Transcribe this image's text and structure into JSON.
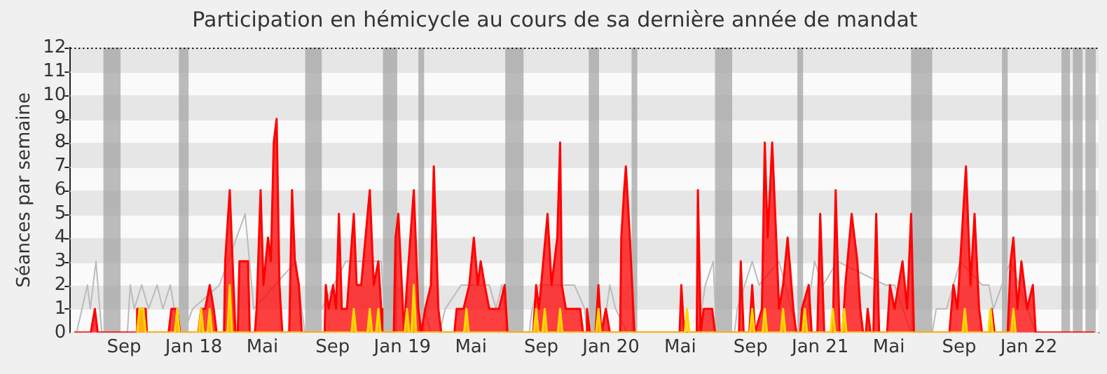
{
  "chart_data": {
    "type": "area",
    "title": "Participation en hémicycle au cours de sa dernière année de mandat",
    "ylabel": "Séances par semaine",
    "legend": false,
    "grid": "y",
    "marker": "none",
    "line_style": "solid",
    "xlim": [
      "2017-06-13",
      "2022-05-17"
    ],
    "ylim": [
      0,
      12
    ],
    "xticks": [
      {
        "value": "2017-09-15",
        "label": "Sep"
      },
      {
        "value": "2018-01-15",
        "label": "Jan 18"
      },
      {
        "value": "2018-05-15",
        "label": "Mai"
      },
      {
        "value": "2018-09-15",
        "label": "Sep"
      },
      {
        "value": "2019-01-15",
        "label": "Jan 19"
      },
      {
        "value": "2019-05-15",
        "label": "Mai"
      },
      {
        "value": "2019-09-15",
        "label": "Sep"
      },
      {
        "value": "2020-01-15",
        "label": "Jan 20"
      },
      {
        "value": "2020-05-15",
        "label": "Mai"
      },
      {
        "value": "2020-09-15",
        "label": "Sep"
      },
      {
        "value": "2021-01-15",
        "label": "Jan 21"
      },
      {
        "value": "2021-05-15",
        "label": "Mai"
      },
      {
        "value": "2021-09-15",
        "label": "Sep"
      },
      {
        "value": "2022-01-15",
        "label": "Jan 22"
      }
    ],
    "yticks": [
      0,
      1,
      2,
      3,
      4,
      5,
      6,
      7,
      8,
      9,
      10,
      11,
      12
    ],
    "bands": [
      {
        "axis": "x",
        "from": "2017-08-10",
        "to": "2017-09-09",
        "color": "#a0a0a0"
      },
      {
        "axis": "x",
        "from": "2017-12-20",
        "to": "2018-01-06",
        "color": "#a0a0a0"
      },
      {
        "axis": "x",
        "from": "2018-07-29",
        "to": "2018-08-27",
        "color": "#a0a0a0"
      },
      {
        "axis": "x",
        "from": "2018-12-12",
        "to": "2019-01-06",
        "color": "#a0a0a0"
      },
      {
        "axis": "x",
        "from": "2019-02-12",
        "to": "2019-02-22",
        "color": "#a0a0a0"
      },
      {
        "axis": "x",
        "from": "2019-07-14",
        "to": "2019-08-15",
        "color": "#a0a0a0"
      },
      {
        "axis": "x",
        "from": "2019-12-07",
        "to": "2019-12-25",
        "color": "#a0a0a0"
      },
      {
        "axis": "x",
        "from": "2020-02-20",
        "to": "2020-03-01",
        "color": "#a0a0a0"
      },
      {
        "axis": "x",
        "from": "2020-07-15",
        "to": "2020-08-14",
        "color": "#a0a0a0"
      },
      {
        "axis": "x",
        "from": "2020-12-06",
        "to": "2020-12-16",
        "color": "#a0a0a0"
      },
      {
        "axis": "x",
        "from": "2021-06-23",
        "to": "2021-07-30",
        "color": "#a0a0a0"
      },
      {
        "axis": "x",
        "from": "2021-11-29",
        "to": "2021-12-09",
        "color": "#a0a0a0"
      },
      {
        "axis": "x",
        "from": "2022-03-13",
        "to": "2022-03-28",
        "color": "#a0a0a0"
      },
      {
        "axis": "x",
        "from": "2022-04-02",
        "to": "2022-04-19",
        "color": "#a0a0a0"
      },
      {
        "axis": "x",
        "from": "2022-04-24",
        "to": "2022-05-12",
        "color": "#a0a0a0"
      }
    ],
    "series": [
      {
        "type": "line",
        "color": "#bbbbbb",
        "x": [
          "2017-06-24",
          "2017-07-13",
          "2017-07-18",
          "2017-07-28",
          "2017-08-07",
          "2017-09-21",
          "2017-09-26",
          "2017-10-03",
          "2017-10-16",
          "2017-10-28",
          "2017-11-12",
          "2017-11-22",
          "2017-12-05",
          "2017-12-12",
          "2017-12-29",
          "2018-01-13",
          "2018-02-10",
          "2018-03-01",
          "2018-03-24",
          "2018-04-15",
          "2018-04-30",
          "2018-06-06",
          "2018-07-13",
          "2018-07-28",
          "2018-08-27",
          "2018-10-08",
          "2018-10-18",
          "2018-12-09",
          "2018-12-17",
          "2019-02-17",
          "2019-02-22",
          "2019-03-06",
          "2019-03-21",
          "2019-03-31",
          "2019-04-28",
          "2019-05-07",
          "2019-05-27",
          "2019-06-08",
          "2019-06-16",
          "2019-06-28",
          "2019-07-08",
          "2019-07-18",
          "2019-08-25",
          "2019-08-30",
          "2019-09-11",
          "2019-11-12",
          "2019-11-30",
          "2019-12-04",
          "2020-01-01",
          "2020-01-13",
          "2020-01-23",
          "2020-02-12",
          "2020-06-15",
          "2020-06-28",
          "2020-07-12",
          "2020-07-17",
          "2020-08-18",
          "2020-08-23",
          "2020-09-18",
          "2020-09-30",
          "2020-11-04",
          "2020-11-16",
          "2020-12-06",
          "2020-12-19",
          "2021-01-05",
          "2021-01-20",
          "2021-02-14",
          "2021-03-16",
          "2021-05-09",
          "2021-05-25",
          "2021-06-23",
          "2021-07-30",
          "2021-08-06",
          "2021-08-24",
          "2021-09-17",
          "2021-10-05",
          "2021-10-25",
          "2021-11-06",
          "2021-11-14",
          "2021-12-14",
          "2022-01-12",
          "2022-01-27"
        ],
        "values": [
          0,
          2,
          1,
          3,
          0,
          0,
          2,
          1,
          2,
          1,
          2,
          1,
          2,
          1,
          0,
          1,
          null,
          2,
          null,
          5,
          1,
          null,
          3,
          0,
          1,
          3,
          3,
          3,
          0,
          0,
          1,
          0,
          0,
          1,
          2,
          2,
          null,
          null,
          2,
          1,
          2,
          0,
          0,
          1,
          2,
          2,
          1,
          0,
          0,
          2,
          1,
          0,
          0,
          2,
          3,
          0,
          0,
          1,
          3,
          2,
          3,
          null,
          0,
          0,
          3,
          2,
          3,
          null,
          2,
          2,
          0,
          0,
          1,
          1,
          3,
          null,
          2,
          2,
          1,
          3,
          null,
          0
        ]
      },
      {
        "type": "area",
        "color": "#ff0000",
        "x": [
          "2017-06-20",
          "2017-07-19",
          "2017-07-26",
          "2017-07-31",
          "2017-10-06",
          "2017-10-08",
          "2017-10-23",
          "2017-10-25",
          "2017-12-02",
          "2017-12-07",
          "2017-12-17",
          "2017-12-22",
          "2018-01-23",
          "2018-01-28",
          "2018-02-04",
          "2018-02-12",
          "2018-02-19",
          "2018-02-24",
          "2018-03-09",
          "2018-03-11",
          "2018-03-19",
          "2018-03-24",
          "2018-03-29",
          "2018-04-02",
          "2018-04-05",
          "2018-04-20",
          "2018-04-23",
          "2018-05-02",
          "2018-05-05",
          "2018-05-12",
          "2018-05-17",
          "2018-05-25",
          "2018-05-30",
          "2018-06-04",
          "2018-06-09",
          "2018-06-14",
          "2018-06-19",
          "2018-07-01",
          "2018-07-06",
          "2018-07-11",
          "2018-07-18",
          "2018-07-23",
          "2018-09-01",
          "2018-09-03",
          "2018-09-08",
          "2018-09-16",
          "2018-09-21",
          "2018-09-26",
          "2018-10-01",
          "2018-10-10",
          "2018-10-22",
          "2018-10-27",
          "2018-11-04",
          "2018-11-19",
          "2018-11-26",
          "2018-12-04",
          "2018-12-09",
          "2018-12-11",
          "2018-12-31",
          "2019-01-03",
          "2019-01-08",
          "2019-01-16",
          "2019-01-18",
          "2019-01-23",
          "2019-02-04",
          "2019-02-12",
          "2019-02-17",
          "2019-02-24",
          "2019-03-06",
          "2019-03-11",
          "2019-03-19",
          "2019-03-24",
          "2019-04-16",
          "2019-04-20",
          "2019-05-02",
          "2019-05-12",
          "2019-05-20",
          "2019-05-27",
          "2019-06-01",
          "2019-06-08",
          "2019-06-16",
          "2019-07-03",
          "2019-07-13",
          "2019-07-18",
          "2019-09-01",
          "2019-09-06",
          "2019-09-11",
          "2019-09-26",
          "2019-10-03",
          "2019-10-13",
          "2019-10-18",
          "2019-10-21",
          "2019-10-28",
          "2019-11-22",
          "2019-11-27",
          "2019-12-02",
          "2019-12-04",
          "2019-12-09",
          "2019-12-19",
          "2019-12-24",
          "2019-12-29",
          "2020-01-06",
          "2020-01-13",
          "2020-01-31",
          "2020-02-02",
          "2020-02-07",
          "2020-02-10",
          "2020-02-17",
          "2020-02-25",
          "2020-05-14",
          "2020-05-17",
          "2020-05-22",
          "2020-06-13",
          "2020-06-15",
          "2020-06-20",
          "2020-06-25",
          "2020-07-10",
          "2020-07-15",
          "2020-08-26",
          "2020-08-29",
          "2020-09-03",
          "2020-09-13",
          "2020-09-18",
          "2020-09-23",
          "2020-10-05",
          "2020-10-10",
          "2020-10-15",
          "2020-10-23",
          "2020-10-30",
          "2020-11-04",
          "2020-11-11",
          "2020-11-19",
          "2020-11-29",
          "2020-12-04",
          "2020-12-11",
          "2020-12-14",
          "2020-12-26",
          "2020-12-31",
          "2021-01-10",
          "2021-01-15",
          "2021-01-22",
          "2021-02-06",
          "2021-02-11",
          "2021-02-18",
          "2021-02-23",
          "2021-02-28",
          "2021-03-11",
          "2021-03-21",
          "2021-03-26",
          "2021-03-31",
          "2021-04-05",
          "2021-04-08",
          "2021-04-13",
          "2021-04-18",
          "2021-04-23",
          "2021-04-28",
          "2021-05-12",
          "2021-05-17",
          "2021-05-25",
          "2021-06-08",
          "2021-06-16",
          "2021-06-23",
          "2021-06-28",
          "2021-08-29",
          "2021-09-05",
          "2021-09-12",
          "2021-09-22",
          "2021-09-27",
          "2021-10-05",
          "2021-10-12",
          "2021-10-20",
          "2021-10-25",
          "2021-11-06",
          "2021-11-11",
          "2021-11-16",
          "2021-12-09",
          "2021-12-14",
          "2021-12-19",
          "2021-12-26",
          "2022-01-02",
          "2022-01-12",
          "2022-01-22",
          "2022-01-27",
          "2022-05-10"
        ],
        "values": [
          0,
          0,
          1,
          0,
          0,
          1,
          1,
          0,
          0,
          1,
          1,
          0,
          0,
          1,
          1,
          2,
          1,
          0,
          0,
          3,
          6,
          3,
          0,
          0,
          3,
          3,
          0,
          0,
          1,
          6,
          2,
          4,
          3,
          8,
          9,
          2,
          0,
          0,
          6,
          3,
          2,
          0,
          0,
          2,
          1,
          2,
          1,
          5,
          1,
          1,
          5,
          2,
          2,
          6,
          2,
          3,
          1,
          0,
          0,
          4,
          5,
          1,
          0,
          2,
          6,
          1,
          0,
          1,
          2,
          7,
          1,
          0,
          0,
          1,
          1,
          2,
          4,
          2,
          3,
          2,
          1,
          1,
          2,
          0,
          0,
          2,
          1,
          5,
          2,
          4,
          8,
          2,
          1,
          1,
          0,
          0,
          1,
          0,
          0,
          2,
          0,
          1,
          0,
          0,
          4,
          6,
          7,
          4,
          0,
          0,
          2,
          0,
          0,
          6,
          0,
          1,
          1,
          0,
          0,
          3,
          0,
          0,
          2,
          0,
          1,
          8,
          4,
          8,
          4,
          1,
          2,
          4,
          1,
          0,
          0,
          1,
          2,
          0,
          0,
          5,
          0,
          0,
          6,
          0,
          0,
          2,
          5,
          3,
          1,
          0,
          0,
          1,
          0,
          0,
          5,
          0,
          0,
          2,
          1,
          3,
          1,
          5,
          0,
          0,
          2,
          1,
          5,
          7,
          2,
          5,
          1,
          0,
          0,
          1,
          0,
          0,
          3,
          4,
          1,
          3,
          1,
          2,
          0,
          0
        ]
      },
      {
        "type": "area",
        "color": "#ffd700",
        "x": [
          "2017-10-08",
          "2017-10-12",
          "2017-10-19",
          "2017-10-23",
          "2017-12-13",
          "2017-12-17",
          "2017-12-21",
          "2018-01-24",
          "2018-01-28",
          "2018-02-01",
          "2018-02-08",
          "2018-02-12",
          "2018-02-16",
          "2018-03-15",
          "2018-03-19",
          "2018-03-23",
          "2018-10-18",
          "2018-10-22",
          "2018-10-26",
          "2018-11-15",
          "2018-11-19",
          "2018-11-23",
          "2018-11-30",
          "2018-12-04",
          "2018-12-08",
          "2019-01-19",
          "2019-01-23",
          "2019-01-27",
          "2019-01-31",
          "2019-02-04",
          "2019-02-08",
          "2019-05-03",
          "2019-05-07",
          "2019-05-11",
          "2019-09-02",
          "2019-09-06",
          "2019-09-10",
          "2019-09-17",
          "2019-09-21",
          "2019-09-25",
          "2019-10-14",
          "2019-10-18",
          "2019-10-22",
          "2019-12-20",
          "2019-12-24",
          "2019-12-28",
          "2020-05-23",
          "2020-05-27",
          "2020-05-31",
          "2020-09-14",
          "2020-09-18",
          "2020-09-22",
          "2020-10-06",
          "2020-10-10",
          "2020-10-14",
          "2020-11-07",
          "2020-11-11",
          "2020-11-15",
          "2020-12-15",
          "2020-12-19",
          "2020-12-23",
          "2021-02-02",
          "2021-02-06",
          "2021-02-10",
          "2021-02-22",
          "2021-02-26",
          "2021-03-02",
          "2021-09-21",
          "2021-09-25",
          "2021-09-29",
          "2021-11-05",
          "2021-11-09",
          "2021-11-13",
          "2021-12-15",
          "2021-12-19",
          "2021-12-23"
        ],
        "values": [
          0,
          1,
          1,
          0,
          0,
          1,
          0,
          0,
          1,
          0,
          0,
          1,
          0,
          0,
          2,
          0,
          0,
          1,
          0,
          0,
          1,
          0,
          0,
          1,
          0,
          0,
          1,
          0,
          0,
          2,
          0,
          0,
          1,
          0,
          0,
          1,
          0,
          0,
          1,
          0,
          0,
          1,
          0,
          0,
          1,
          0,
          0,
          1,
          0,
          0,
          1,
          0,
          0,
          1,
          0,
          0,
          1,
          0,
          0,
          1,
          0,
          0,
          1,
          0,
          0,
          1,
          0,
          0,
          1,
          0,
          0,
          1,
          0,
          0,
          1,
          0
        ]
      }
    ]
  }
}
